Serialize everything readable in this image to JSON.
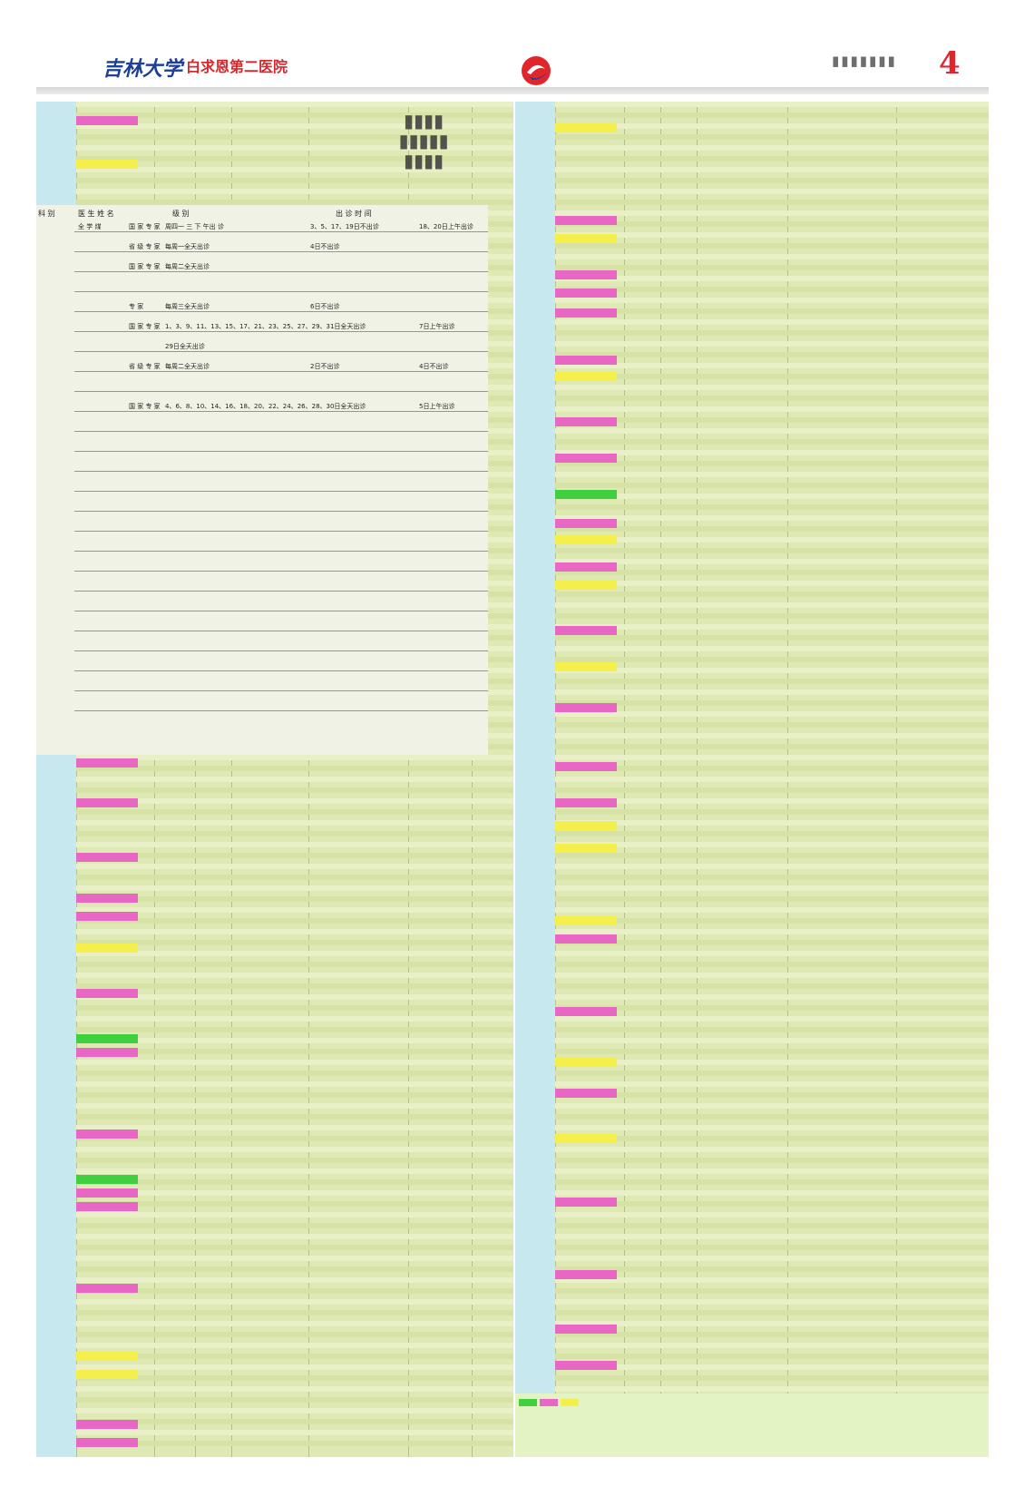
{
  "header": {
    "university": "吉林大学",
    "hospital": "白求恩第二医院",
    "page_number": "4",
    "emblem": "hospital-emblem-icon",
    "colors": {
      "blue": "#1c3f9a",
      "red": "#e0252b"
    }
  },
  "table": {
    "headers": {
      "dept": "科 别",
      "doctor": "医 生 姓 名",
      "title": "级 别",
      "time": "出 诊 时 间"
    },
    "rows": [
      {
        "doctor": "全 学 煤",
        "title": "国 家 专 家",
        "time": "周四一 三 下 午出 诊",
        "extra": "3、5、17、19日不出诊",
        "extra2": "18、20日上午出诊"
      },
      {
        "doctor": "",
        "title": "省 级 专 家",
        "time": "每周一全天出诊",
        "extra": "4日不出诊",
        "extra2": ""
      },
      {
        "doctor": "",
        "title": "国 家 专 家",
        "time": "每周二全天出诊",
        "extra": "",
        "extra2": ""
      },
      {
        "doctor": "",
        "title": "",
        "time": "",
        "extra": "",
        "extra2": ""
      },
      {
        "doctor": "",
        "title": "专 家",
        "time": "每周三全天出诊",
        "extra": "6日不出诊",
        "extra2": ""
      },
      {
        "doctor": "",
        "title": "国 家 专 家",
        "time": "1、3、9、11、13、15、17、21、23、25、27、29、31日全天出诊",
        "extra": "",
        "extra2": "7日上午出诊"
      },
      {
        "doctor": "",
        "title": "",
        "time": "29日全天出诊",
        "extra": "",
        "extra2": ""
      },
      {
        "doctor": "",
        "title": "省 级 专 家",
        "time": "每周二全天出诊",
        "extra": "2日不出诊",
        "extra2": "4日不出诊"
      },
      {
        "doctor": "",
        "title": "",
        "time": "",
        "extra": "",
        "extra2": ""
      },
      {
        "doctor": "",
        "title": "国 家 专 家",
        "time": "4、6、8、10、14、16、18、20、22、24、26、28、30日全天出诊",
        "extra": "",
        "extra2": "5日上午出诊"
      },
      {
        "doctor": "",
        "title": "",
        "time": "",
        "extra": "",
        "extra2": ""
      },
      {
        "doctor": "",
        "title": "",
        "time": "",
        "extra": "",
        "extra2": ""
      },
      {
        "doctor": "",
        "title": "",
        "time": "",
        "extra": "",
        "extra2": ""
      },
      {
        "doctor": "",
        "title": "",
        "time": "",
        "extra": "",
        "extra2": ""
      },
      {
        "doctor": "",
        "title": "",
        "time": "",
        "extra": "",
        "extra2": ""
      },
      {
        "doctor": "",
        "title": "",
        "time": "",
        "extra": "",
        "extra2": ""
      },
      {
        "doctor": "",
        "title": "",
        "time": "",
        "extra": "",
        "extra2": ""
      },
      {
        "doctor": "",
        "title": "",
        "time": "",
        "extra": "",
        "extra2": ""
      },
      {
        "doctor": "",
        "title": "",
        "time": "",
        "extra": "",
        "extra2": ""
      },
      {
        "doctor": "",
        "title": "",
        "time": "",
        "extra": "",
        "extra2": ""
      },
      {
        "doctor": "",
        "title": "",
        "time": "",
        "extra": "",
        "extra2": ""
      },
      {
        "doctor": "",
        "title": "",
        "time": "",
        "extra": "",
        "extra2": ""
      },
      {
        "doctor": "",
        "title": "",
        "time": "",
        "extra": "",
        "extra2": ""
      },
      {
        "doctor": "",
        "title": "",
        "time": "",
        "extra": "",
        "extra2": ""
      },
      {
        "doctor": "",
        "title": "",
        "time": "",
        "extra": "",
        "extra2": ""
      }
    ]
  },
  "footer": {
    "contact": "",
    "notice": "",
    "red_note": ""
  }
}
